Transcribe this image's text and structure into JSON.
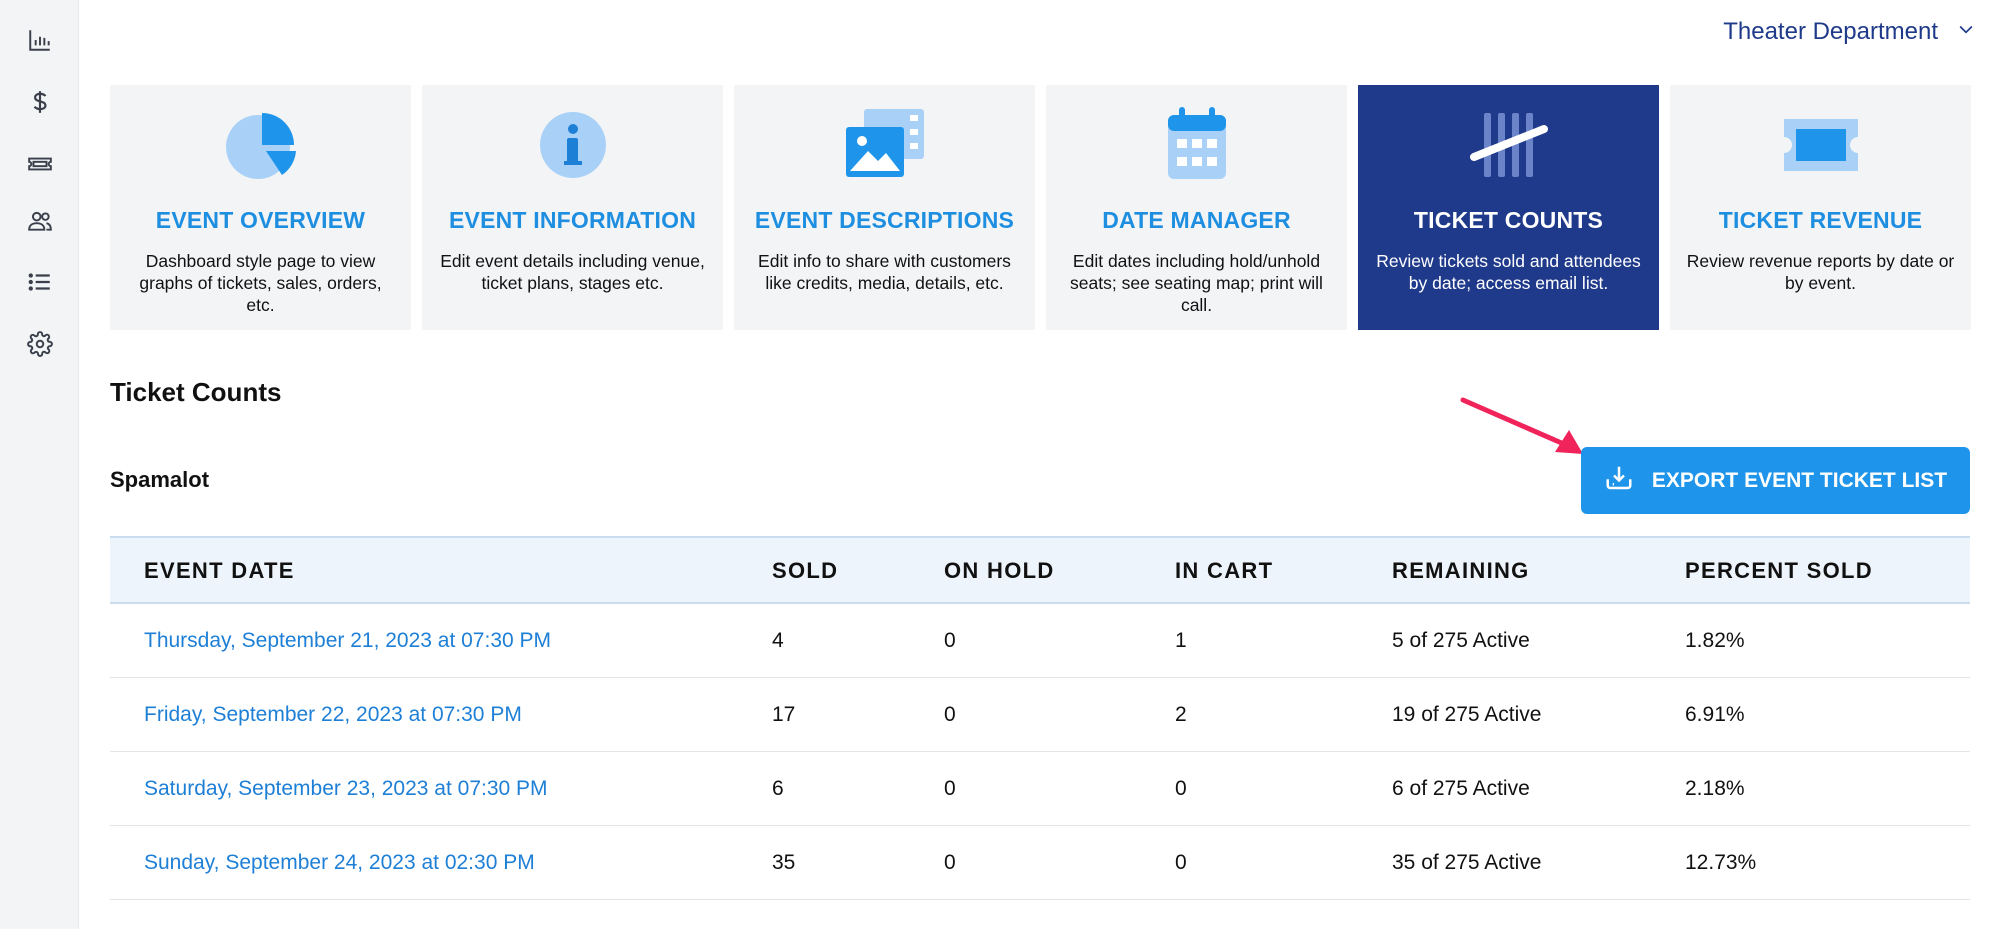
{
  "header": {
    "department": "Theater Department"
  },
  "sidebar": {
    "icons": [
      "bar-chart-icon",
      "dollar-icon",
      "ticket-icon",
      "users-icon",
      "list-icon",
      "gear-icon"
    ]
  },
  "cards": [
    {
      "title": "EVENT OVERVIEW",
      "desc": "Dashboard style page to view graphs of tickets, sales, orders, etc.",
      "icon": "pie-chart-icon"
    },
    {
      "title": "EVENT INFORMATION",
      "desc": "Edit event details including venue, ticket plans, stages etc.",
      "icon": "info-icon"
    },
    {
      "title": "EVENT DESCRIPTIONS",
      "desc": "Edit info to share with customers like credits, media, details, etc.",
      "icon": "media-icon"
    },
    {
      "title": "DATE MANAGER",
      "desc": "Edit dates including hold/unhold seats; see seating map; print will call.",
      "icon": "calendar-icon"
    },
    {
      "title": "TICKET COUNTS",
      "desc": "Review tickets sold and attendees by date; access email list.",
      "icon": "tally-icon",
      "active": true
    },
    {
      "title": "TICKET REVENUE",
      "desc": "Review revenue reports by date or by event.",
      "icon": "ticket-icon"
    }
  ],
  "page": {
    "title": "Ticket Counts",
    "event_name": "Spamalot",
    "export_label": "EXPORT EVENT TICKET LIST"
  },
  "table": {
    "headers": [
      "EVENT DATE",
      "SOLD",
      "ON HOLD",
      "IN CART",
      "REMAINING",
      "PERCENT SOLD"
    ],
    "rows": [
      [
        "Thursday, September 21, 2023 at 07:30 PM",
        "4",
        "0",
        "1",
        "5 of 275 Active",
        "1.82%"
      ],
      [
        "Friday, September 22, 2023 at 07:30 PM",
        "17",
        "0",
        "2",
        "19 of 275 Active",
        "6.91%"
      ],
      [
        "Saturday, September 23, 2023 at 07:30 PM",
        "6",
        "0",
        "0",
        "6 of 275 Active",
        "2.18%"
      ],
      [
        "Sunday, September 24, 2023 at 02:30 PM",
        "35",
        "0",
        "0",
        "35 of 275 Active",
        "12.73%"
      ]
    ]
  },
  "colors": {
    "accent": "#1e95ea",
    "active_card": "#1f3a8a",
    "link": "#1e7fd6",
    "annotation_arrow": "#f0245a"
  }
}
